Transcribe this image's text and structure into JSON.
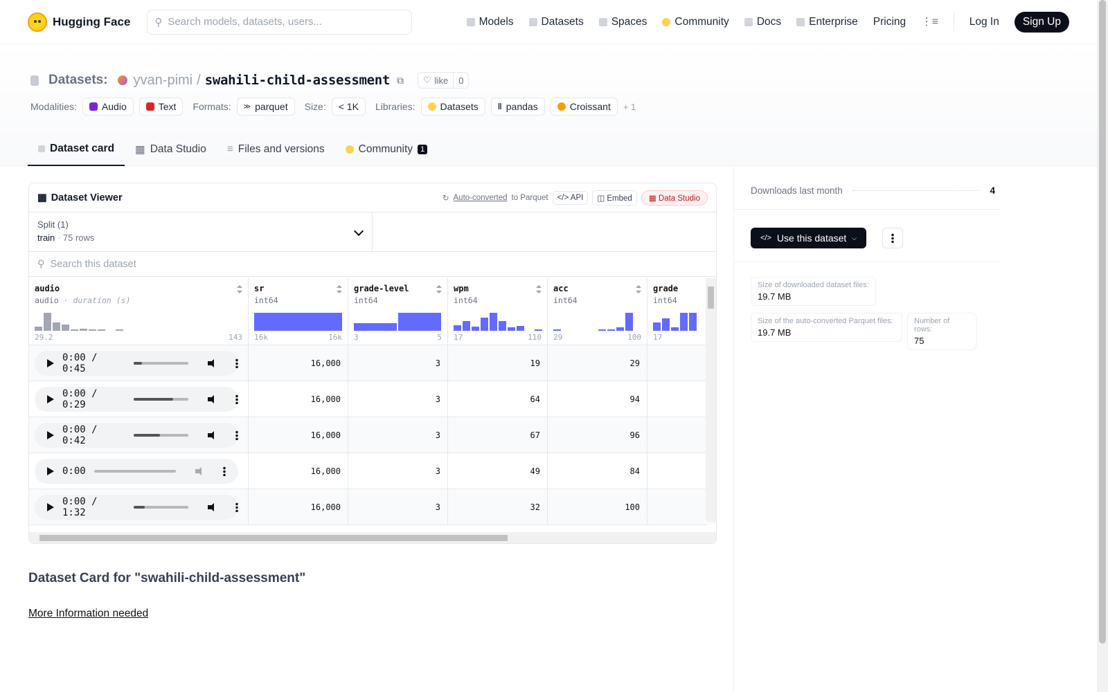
{
  "nav": {
    "brand": "Hugging Face",
    "search_placeholder": "Search models, datasets, users...",
    "links": [
      "Models",
      "Datasets",
      "Spaces",
      "Community",
      "Docs",
      "Enterprise",
      "Pricing"
    ],
    "login": "Log In",
    "signup": "Sign Up"
  },
  "header": {
    "section": "Datasets:",
    "owner": "yvan-pimi",
    "slash": "/",
    "name": "swahili-child-assessment",
    "like_label": "like",
    "like_count": "0",
    "modalities_label": "Modalities:",
    "modalities": [
      "Audio",
      "Text"
    ],
    "formats_label": "Formats:",
    "format": "parquet",
    "size_label": "Size:",
    "size": "< 1K",
    "libraries_label": "Libraries:",
    "libraries": [
      "Datasets",
      "pandas",
      "Croissant"
    ],
    "more": "+ 1"
  },
  "tabs": [
    {
      "label": "Dataset card",
      "active": true
    },
    {
      "label": "Data Studio"
    },
    {
      "label": "Files and versions"
    },
    {
      "label": "Community",
      "badge": "1"
    }
  ],
  "viewer": {
    "title": "Dataset Viewer",
    "auto_converted": "Auto-converted",
    "to_parquet": "to Parquet",
    "api": "API",
    "embed": "Embed",
    "data_studio": "Data Studio",
    "split_label": "Split (1)",
    "split_name": "train",
    "split_dot": "·",
    "split_rows": "75 rows",
    "search_placeholder": "Search this dataset",
    "columns": [
      {
        "name": "audio",
        "type": "audio",
        "type_extra": "· duration (s)",
        "min": "29.2",
        "max": "143"
      },
      {
        "name": "sr",
        "type": "int64",
        "min": "16k",
        "max": "16k"
      },
      {
        "name": "grade-level",
        "type": "int64",
        "min": "3",
        "max": "5"
      },
      {
        "name": "wpm",
        "type": "int64",
        "min": "17",
        "max": "110"
      },
      {
        "name": "acc",
        "type": "int64",
        "min": "29",
        "max": "100"
      },
      {
        "name": "grade",
        "type": "int64",
        "min": "17",
        "max": ""
      }
    ],
    "histograms": {
      "audio": [
        0.25,
        1.0,
        0.45,
        0.35,
        0.08,
        0.1,
        0.08,
        0.06,
        0.0,
        0.06
      ],
      "sr": [
        1.0
      ],
      "grade-level": [
        0.42,
        1.0
      ],
      "wpm": [
        0.3,
        0.55,
        0.25,
        0.75,
        1.0,
        0.55,
        0.18,
        0.28,
        0.0,
        0.04
      ],
      "acc": [
        0.05,
        0.0,
        0.0,
        0.0,
        0.0,
        0.04,
        0.04,
        0.2,
        1.0
      ],
      "grade": [
        0.45,
        0.7,
        0.2,
        1.0,
        1.0
      ]
    },
    "rows": [
      {
        "time": "0:00 / 0:45",
        "progress": 0.15,
        "sr": "16,000",
        "grade_level": "3",
        "wpm": "19",
        "acc": "29"
      },
      {
        "time": "0:00 / 0:29",
        "progress": 0.72,
        "sr": "16,000",
        "grade_level": "3",
        "wpm": "64",
        "acc": "94"
      },
      {
        "time": "0:00 / 0:42",
        "progress": 0.48,
        "sr": "16,000",
        "grade_level": "3",
        "wpm": "67",
        "acc": "96"
      },
      {
        "time": "0:00",
        "progress": 0.0,
        "sr": "16,000",
        "grade_level": "3",
        "wpm": "49",
        "acc": "84"
      },
      {
        "time": "0:00 / 1:32",
        "progress": 0.2,
        "sr": "16,000",
        "grade_level": "3",
        "wpm": "32",
        "acc": "100"
      }
    ]
  },
  "card": {
    "heading": "Dataset Card for \"swahili-child-assessment\"",
    "link": "More Information needed"
  },
  "sidebar": {
    "downloads_label": "Downloads last month",
    "downloads_value": "4",
    "use_button": "Use this dataset",
    "download_size_label": "Size of downloaded dataset files:",
    "download_size": "19.7 MB",
    "parquet_size_label": "Size of the auto-converted Parquet files:",
    "parquet_size": "19.7 MB",
    "rows_label": "Number of rows:",
    "rows_value": "75"
  },
  "colors": {
    "accent": "#636bfe",
    "dark": "#0b0f19",
    "audio_hist": "#a1a6b2"
  }
}
